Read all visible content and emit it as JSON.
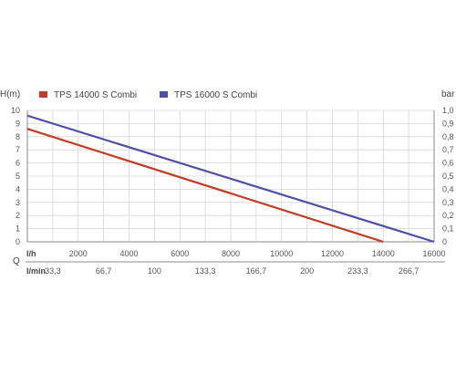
{
  "chart_data": {
    "type": "line",
    "left_axis": {
      "label": "H(m)",
      "ticks": [
        "0",
        "1",
        "2",
        "3",
        "4",
        "5",
        "6",
        "7",
        "8",
        "9",
        "10"
      ],
      "range": [
        0,
        10
      ]
    },
    "right_axis": {
      "label": "bar",
      "ticks": [
        "0",
        "0,1",
        "0,2",
        "0,3",
        "0,4",
        "0,5",
        "0,6",
        "0,7",
        "0,8",
        "0,9",
        "1,0"
      ],
      "range": [
        0,
        1.0
      ]
    },
    "x_axis": {
      "label": "Q",
      "range": [
        0,
        16000
      ],
      "unit_lh": "l/h",
      "unit_lmin": "l/min",
      "ticks_lh": [
        {
          "value": 2000,
          "label": "2000"
        },
        {
          "value": 4000,
          "label": "4000"
        },
        {
          "value": 6000,
          "label": "6000"
        },
        {
          "value": 8000,
          "label": "8000"
        },
        {
          "value": 10000,
          "label": "10000"
        },
        {
          "value": 12000,
          "label": "12000"
        },
        {
          "value": 14000,
          "label": "14000"
        },
        {
          "value": 16000,
          "label": "16000"
        }
      ],
      "ticks_lmin": [
        {
          "value": 1000,
          "label": "33,3"
        },
        {
          "value": 3000,
          "label": "66,7"
        },
        {
          "value": 5000,
          "label": "100"
        },
        {
          "value": 7000,
          "label": "133,3"
        },
        {
          "value": 9000,
          "label": "166,7"
        },
        {
          "value": 11000,
          "label": "200"
        },
        {
          "value": 13000,
          "label": "233,3"
        },
        {
          "value": 15000,
          "label": "266,7"
        }
      ]
    },
    "grid": true,
    "legend_position": "top",
    "series": [
      {
        "name": "TPS 14000 S Combi",
        "color": "#c23b22",
        "x": [
          0,
          14000
        ],
        "y": [
          8.6,
          0
        ]
      },
      {
        "name": "TPS 16000 S Combi",
        "color": "#4f4fa8",
        "x": [
          0,
          16000
        ],
        "y": [
          9.6,
          0
        ]
      }
    ]
  }
}
